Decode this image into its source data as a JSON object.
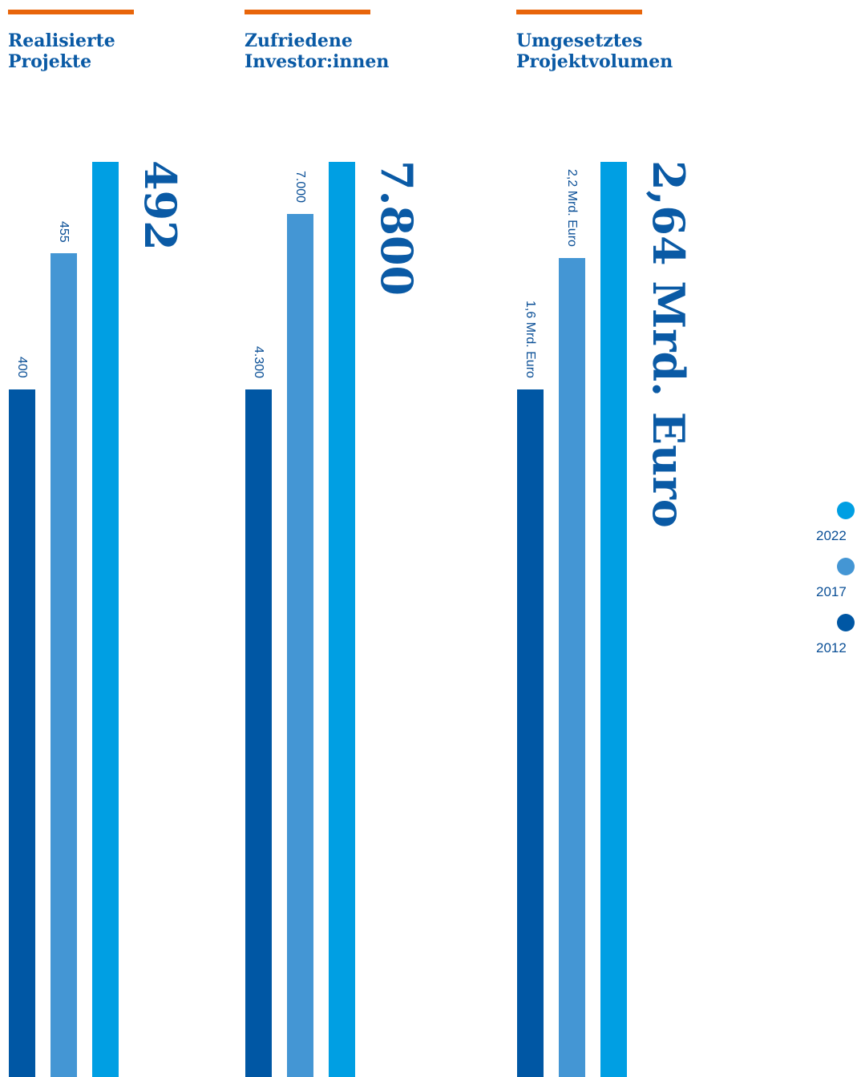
{
  "colors": {
    "accent": "#e8650a",
    "title": "#0a5aa5",
    "series_2012": "#0057a4",
    "series_2017": "#4496d4",
    "series_2022": "#009fe3"
  },
  "legend": [
    {
      "label": "2022"
    },
    {
      "label": "2017"
    },
    {
      "label": "2012"
    }
  ],
  "chart_data": [
    {
      "type": "bar",
      "title": "Realisierte Projekte",
      "categories": [
        "2012",
        "2017",
        "2022"
      ],
      "values": [
        400,
        455,
        492
      ],
      "value_labels": [
        "400",
        "455",
        "492"
      ]
    },
    {
      "type": "bar",
      "title": "Zufriedene Investor:innen",
      "categories": [
        "2012",
        "2017",
        "2022"
      ],
      "values": [
        4300,
        7000,
        7800
      ],
      "value_labels": [
        "4.300",
        "7.000",
        "7.800"
      ]
    },
    {
      "type": "bar",
      "title": "Umgesetztes Projektvolumen",
      "categories": [
        "2012",
        "2017",
        "2022"
      ],
      "values": [
        1.6,
        2.2,
        2.64
      ],
      "value_labels": [
        "1,6 Mrd. Euro",
        "2,2 Mrd. Euro",
        "2,64 Mrd. Euro"
      ]
    }
  ]
}
